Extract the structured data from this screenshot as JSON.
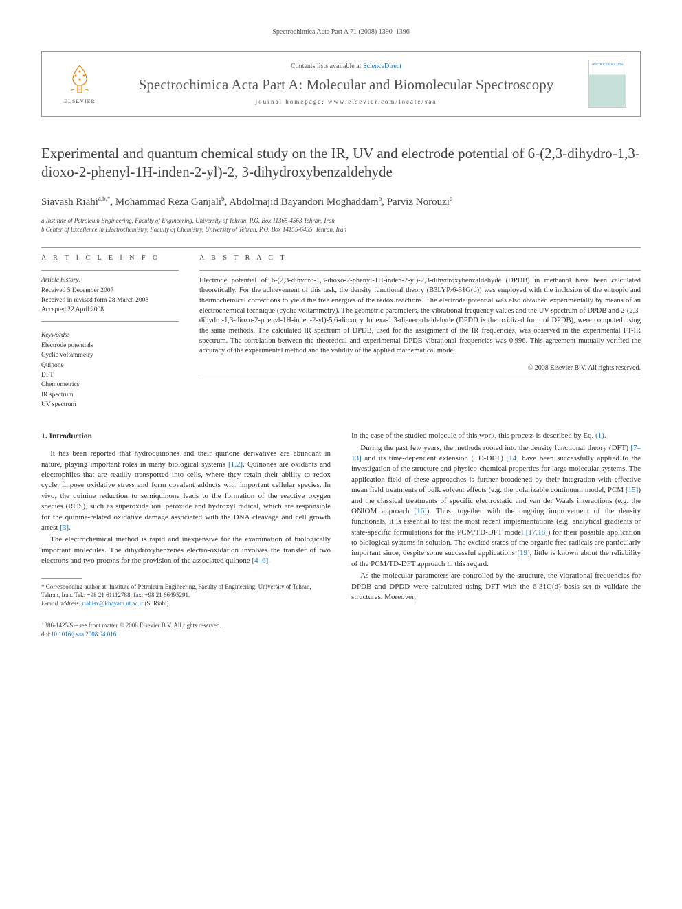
{
  "header": {
    "running_head": "Spectrochimica Acta Part A 71 (2008) 1390–1396",
    "contents_prefix": "Contents lists available at ",
    "contents_link": "ScienceDirect",
    "journal_name": "Spectrochimica Acta Part A: Molecular and Biomolecular Spectroscopy",
    "homepage_label": "journal homepage: www.elsevier.com/locate/saa",
    "publisher": "ELSEVIER"
  },
  "article": {
    "title": "Experimental and quantum chemical study on the IR, UV and electrode potential of 6-(2,3-dihydro-1,3-dioxo-2-phenyl-1H-inden-2-yl)-2, 3-dihydroxybenzaldehyde",
    "authors_html": "Siavash Riahi<sup>a,b,*</sup>, Mohammad Reza Ganjali<sup>b</sup>, Abdolmajid Bayandori Moghaddam<sup>b</sup>, Parviz Norouzi<sup>b</sup>",
    "affiliations": [
      "a Institute of Petroleum Engineering, Faculty of Engineering, University of Tehran, P.O. Box 11365-4563 Tehran, Iran",
      "b Center of Excellence in Electrochemistry, Faculty of Chemistry, University of Tehran, P.O. Box 14155-6455, Tehran, Iran"
    ]
  },
  "info": {
    "heading": "A R T I C L E   I N F O",
    "history_label": "Article history:",
    "history": [
      "Received 5 December 2007",
      "Received in revised form 28 March 2008",
      "Accepted 22 April 2008"
    ],
    "keywords_label": "Keywords:",
    "keywords": [
      "Electrode potentials",
      "Cyclic voltammetry",
      "Quinone",
      "DFT",
      "Chemometrics",
      "IR spectrum",
      "UV spectrum"
    ]
  },
  "abstract": {
    "heading": "A B S T R A C T",
    "text": "Electrode potential of 6-(2,3-dihydro-1,3-dioxo-2-phenyl-1H-inden-2-yl)-2,3-dihydroxybenzaldehyde (DPDB) in methanol have been calculated theoretically. For the achievement of this task, the density functional theory (B3LYP/6-31G(d)) was employed with the inclusion of the entropic and thermochemical corrections to yield the free energies of the redox reactions. The electrode potential was also obtained experimentally by means of an electrochemical technique (cyclic voltammetry). The geometric parameters, the vibrational frequency values and the UV spectrum of DPDB and 2-(2,3-dihydro-1,3-dioxo-2-phenyl-1H-inden-2-yl)-5,6-dioxocyclohexa-1,3-dienecarbaldehyde (DPDD is the oxidized form of DPDB), were computed using the same methods. The calculated IR spectrum of DPDB, used for the assignment of the IR frequencies, was observed in the experimental FT-IR spectrum. The correlation between the theoretical and experimental DPDB vibrational frequencies was 0.996. This agreement mutually verified the accuracy of the experimental method and the validity of the applied mathematical model.",
    "copyright": "© 2008 Elsevier B.V. All rights reserved."
  },
  "body": {
    "section1_heading": "1. Introduction",
    "col1_p1": "It has been reported that hydroquinones and their quinone derivatives are abundant in nature, playing important roles in many biological systems [1,2]. Quinones are oxidants and electrophiles that are readily transported into cells, where they retain their ability to redox cycle, impose oxidative stress and form covalent adducts with important cellular species. In vivo, the quinine reduction to semiquinone leads to the formation of the reactive oxygen species (ROS), such as superoxide ion, peroxide and hydroxyl radical, which are responsible for the quinine-related oxidative damage associated with the DNA cleavage and cell growth arrest [3].",
    "col1_p2": "The electrochemical method is rapid and inexpensive for the examination of biologically important molecules. The dihydroxybenzenes electro-oxidation involves the transfer of two electrons and two protons for the provision of the associated quinone [4–6].",
    "col2_p1": "In the case of the studied molecule of this work, this process is described by Eq. (1).",
    "col2_p2": "During the past few years, the methods rooted into the density functional theory (DFT) [7–13] and its time-dependent extension (TD-DFT) [14] have been successfully applied to the investigation of the structure and physico-chemical properties for large molecular systems. The application field of these approaches is further broadened by their integration with effective mean field treatments of bulk solvent effects (e.g. the polarizable continuum model, PCM [15]) and the classical treatments of specific electrostatic and van der Waals interactions (e.g. the ONIOM approach [16]). Thus, together with the ongoing improvement of the density functionals, it is essential to test the most recent implementations (e.g. analytical gradients or state-specific formulations for the PCM/TD-DFT model [17,18]) for their possible application to biological systems in solution. The excited states of the organic free radicals are particularly important since, despite some successful applications [19], little is known about the reliability of the PCM/TD-DFT approach in this regard.",
    "col2_p3": "As the molecular parameters are controlled by the structure, the vibrational frequencies for DPDB and DPDD were calculated using DFT with the 6-31G(d) basis set to validate the structures. Moreover,"
  },
  "footnote": {
    "corresponding": "* Corresponding author at: Institute of Petroleum Engineering, Faculty of Engineering, University of Tehran, Tehran, Iran. Tel.: +98 21 61112788; fax: +98 21 66495291.",
    "email_label": "E-mail address: ",
    "email": "riahisv@khayam.ut.ac.ir",
    "email_suffix": " (S. Riahi)."
  },
  "footer": {
    "left_line1": "1386-1425/$ – see front matter © 2008 Elsevier B.V. All rights reserved.",
    "doi_prefix": "doi:",
    "doi": "10.1016/j.saa.2008.04.016"
  },
  "refs": {
    "r1_2": "[1,2]",
    "r3": "[3]",
    "r4_6": "[4–6]",
    "r1": "(1)",
    "r7_13": "[7–13]",
    "r14": "[14]",
    "r15": "[15]",
    "r16": "[16]",
    "r17_18": "[17,18]",
    "r19": "[19]"
  }
}
